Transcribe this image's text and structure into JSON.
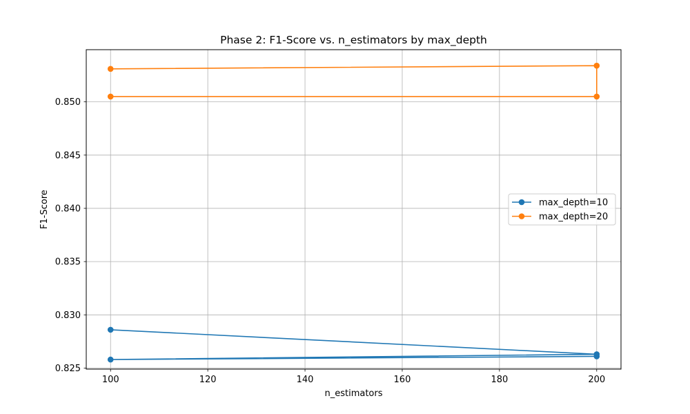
{
  "chart_data": {
    "type": "line",
    "title": "Phase 2: F1-Score vs. n_estimators by max_depth",
    "xlabel": "n_estimators",
    "ylabel": "F1-Score",
    "xlim": [
      95,
      205
    ],
    "ylim": [
      0.8249,
      0.8549
    ],
    "xticks": [
      100,
      120,
      140,
      160,
      180,
      200
    ],
    "yticks": [
      0.825,
      0.83,
      0.835,
      0.84,
      0.845,
      0.85
    ],
    "ytick_labels": [
      "0.825",
      "0.830",
      "0.835",
      "0.840",
      "0.845",
      "0.850"
    ],
    "grid": true,
    "legend_position": "center-right",
    "series": [
      {
        "name": "max_depth=10",
        "color": "#1f77b4",
        "marker": "circle",
        "points": [
          {
            "x": 100,
            "y": 0.8286
          },
          {
            "x": 200,
            "y": 0.8263
          },
          {
            "x": 100,
            "y": 0.8258
          },
          {
            "x": 200,
            "y": 0.8261
          }
        ]
      },
      {
        "name": "max_depth=20",
        "color": "#ff7f0e",
        "marker": "circle",
        "points": [
          {
            "x": 100,
            "y": 0.8531
          },
          {
            "x": 200,
            "y": 0.8534
          },
          {
            "x": 200,
            "y": 0.8505
          },
          {
            "x": 100,
            "y": 0.8505
          }
        ]
      }
    ]
  }
}
